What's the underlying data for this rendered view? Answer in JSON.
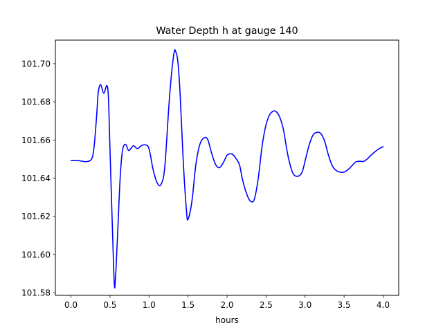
{
  "chart_data": {
    "type": "line",
    "title": "Water Depth h at gauge 140",
    "xlabel": "hours",
    "ylabel": "",
    "xlim": [
      -0.2,
      4.2
    ],
    "ylim": [
      101.5787,
      101.7123
    ],
    "grid": false,
    "xticks": [
      0.0,
      0.5,
      1.0,
      1.5,
      2.0,
      2.5,
      3.0,
      3.5,
      4.0
    ],
    "xtick_labels": [
      "0.0",
      "0.5",
      "1.0",
      "1.5",
      "2.0",
      "2.5",
      "3.0",
      "3.5",
      "4.0"
    ],
    "yticks": [
      101.58,
      101.6,
      101.62,
      101.64,
      101.66,
      101.68,
      101.7
    ],
    "ytick_labels": [
      "101.58",
      "101.60",
      "101.62",
      "101.64",
      "101.66",
      "101.68",
      "101.70"
    ],
    "series": [
      {
        "color": "#0000ff",
        "x": [
          0.0,
          0.1,
          0.2,
          0.27,
          0.3,
          0.33,
          0.35,
          0.38,
          0.42,
          0.46,
          0.48,
          0.5,
          0.53,
          0.555,
          0.57,
          0.6,
          0.63,
          0.66,
          0.7,
          0.74,
          0.8,
          0.85,
          0.9,
          0.95,
          1.0,
          1.05,
          1.1,
          1.15,
          1.2,
          1.25,
          1.28,
          1.32,
          1.34,
          1.37,
          1.4,
          1.44,
          1.48,
          1.5,
          1.55,
          1.6,
          1.65,
          1.7,
          1.75,
          1.8,
          1.85,
          1.9,
          1.95,
          2.0,
          2.05,
          2.08,
          2.12,
          2.16,
          2.2,
          2.25,
          2.3,
          2.35,
          2.4,
          2.45,
          2.5,
          2.55,
          2.6,
          2.63,
          2.67,
          2.72,
          2.78,
          2.84,
          2.9,
          2.96,
          3.0,
          3.05,
          3.1,
          3.15,
          3.2,
          3.25,
          3.3,
          3.35,
          3.4,
          3.45,
          3.5,
          3.55,
          3.6,
          3.65,
          3.7,
          3.75,
          3.8,
          3.85,
          3.9,
          3.95,
          4.0
        ],
        "y": [
          101.6493,
          101.6492,
          101.6487,
          101.6505,
          101.658,
          101.6735,
          101.685,
          101.689,
          101.6845,
          101.6885,
          101.682,
          101.655,
          101.615,
          101.585,
          101.5875,
          101.613,
          101.64,
          101.6545,
          101.6578,
          101.6545,
          101.657,
          101.6555,
          101.657,
          101.6575,
          101.6555,
          101.645,
          101.638,
          101.6365,
          101.645,
          101.675,
          101.691,
          101.7055,
          101.7065,
          101.701,
          101.683,
          101.648,
          101.623,
          101.6185,
          101.628,
          101.647,
          101.6575,
          101.661,
          101.6605,
          101.6535,
          101.6475,
          101.6455,
          101.648,
          101.652,
          101.6528,
          101.6522,
          101.65,
          101.647,
          101.639,
          101.632,
          101.628,
          101.629,
          101.64,
          101.657,
          101.668,
          101.6735,
          101.6752,
          101.6748,
          101.6725,
          101.666,
          101.652,
          101.643,
          101.641,
          101.643,
          101.649,
          101.657,
          101.6625,
          101.664,
          101.6635,
          101.6595,
          101.652,
          101.6465,
          101.644,
          101.6432,
          101.6432,
          101.6445,
          101.6465,
          101.6485,
          101.6489,
          101.6488,
          101.6502,
          101.6522,
          101.654,
          101.6555,
          101.6565
        ]
      }
    ]
  }
}
